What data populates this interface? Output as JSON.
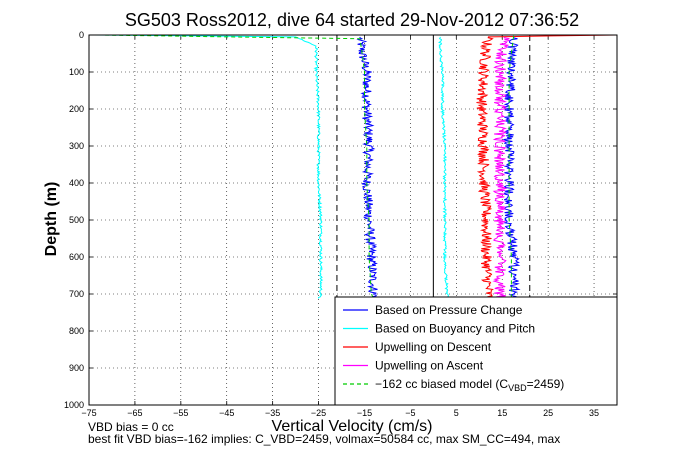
{
  "chart_data": {
    "type": "line",
    "title": "SG503 Ross2012, dive 64 started 29-Nov-2012 07:36:52",
    "xlabel": "Vertical Velocity (cm/s)",
    "ylabel": "Depth (m)",
    "xlim": [
      -75,
      40
    ],
    "ylim": [
      0,
      1000
    ],
    "y_reversed": true,
    "grid": true,
    "xticks": [
      -75,
      -65,
      -55,
      -45,
      -35,
      -25,
      -15,
      -5,
      5,
      15,
      25,
      35
    ],
    "yticks": [
      0,
      100,
      200,
      300,
      400,
      500,
      600,
      700,
      800,
      900,
      1000
    ],
    "legend_position": "bottom-right",
    "series": [
      {
        "name": "Based on Pressure Change",
        "color": "#0000ff",
        "style": "solid",
        "descent": {
          "depth": [
            5,
            50,
            100,
            200,
            300,
            400,
            500,
            600,
            700,
            712
          ],
          "velocity": [
            -16,
            -15.5,
            -14.5,
            -14.5,
            -14,
            -14.5,
            -14,
            -13.5,
            -13,
            -12
          ]
        },
        "ascent": {
          "depth": [
            712,
            700,
            600,
            500,
            400,
            300,
            200,
            100,
            50,
            5
          ],
          "velocity": [
            18,
            17.5,
            17.5,
            16.5,
            16.5,
            16.5,
            16.5,
            17,
            17,
            17.5
          ]
        }
      },
      {
        "name": "Based on Buoyancy and Pitch",
        "color": "#00ffff",
        "style": "solid",
        "descent": {
          "depth": [
            0,
            5,
            30,
            100,
            200,
            300,
            400,
            500,
            600,
            700,
            712
          ],
          "velocity": [
            -74,
            -30,
            -25.5,
            -25.5,
            -25,
            -25,
            -25,
            -24.5,
            -24.5,
            -24.5,
            -25
          ]
        },
        "ascent": {
          "depth": [
            712,
            700,
            600,
            500,
            400,
            300,
            200,
            100,
            50,
            5
          ],
          "velocity": [
            3,
            3,
            2.5,
            2.5,
            2.5,
            2.5,
            2,
            2,
            1.5,
            1.5
          ]
        }
      },
      {
        "name": "Upwelling on Descent",
        "color": "#ff0000",
        "style": "solid",
        "descent": {
          "depth": [
            0,
            5,
            30,
            100,
            200,
            300,
            400,
            500,
            600,
            700,
            712
          ],
          "velocity": [
            40,
            12,
            11.5,
            11,
            10.5,
            11,
            11,
            11.5,
            11.5,
            12,
            12
          ]
        }
      },
      {
        "name": "Upwelling on Ascent",
        "color": "#ff00ff",
        "style": "solid",
        "ascent": {
          "depth": [
            712,
            700,
            600,
            500,
            400,
            300,
            200,
            100,
            50,
            5
          ],
          "velocity": [
            14.5,
            14.5,
            14.5,
            14.5,
            14.5,
            14.5,
            14.5,
            14.5,
            15,
            15.5
          ]
        }
      },
      {
        "name": "-162 cc biased model (C",
        "name_subscript": "VBD",
        "name_suffix": "=2459)",
        "color": "#00cc00",
        "style": "dashed",
        "descent": {
          "depth": [
            0,
            10,
            50,
            100,
            200,
            300,
            400,
            500,
            600,
            700,
            712
          ],
          "velocity": [
            -73,
            -16,
            -15.5,
            -15,
            -15,
            -14.5,
            -14.5,
            -14,
            -14,
            -13.5,
            -13
          ]
        },
        "ascent": {
          "depth": [
            712,
            700,
            600,
            500,
            400,
            300,
            200,
            100,
            50,
            0
          ],
          "velocity": [
            17,
            17,
            17,
            16.5,
            16.5,
            16.5,
            16.5,
            16.5,
            17,
            17.5
          ]
        }
      }
    ],
    "reference_lines": {
      "solid_vertical": [
        0
      ],
      "dashed_vertical": [
        -21,
        21
      ]
    }
  },
  "notes": {
    "line1": "VBD bias = 0 cc",
    "line2": "best fit VBD bias=-162 implies: C_VBD=2459, volmax=50584 cc, max SM_CC=494, max"
  }
}
